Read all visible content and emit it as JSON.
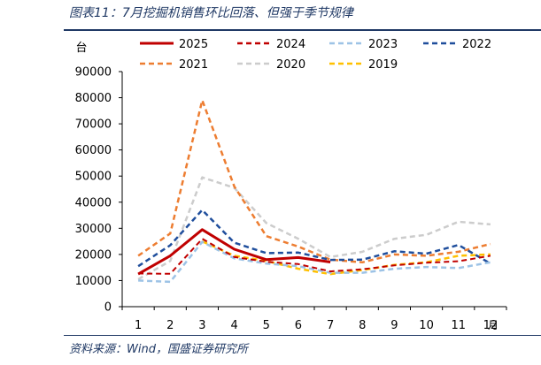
{
  "figure": {
    "title": "图表11：7月挖掘机销售环比回落、但强于季节规律",
    "source": "资料来源：Wind，国盛证券研究所"
  },
  "chart_data": {
    "type": "line",
    "ylabel": "台",
    "xlabel": "月",
    "x": [
      1,
      2,
      3,
      4,
      5,
      6,
      7,
      8,
      9,
      10,
      11,
      12
    ],
    "ylim": [
      0,
      90000
    ],
    "yticks": [
      0,
      10000,
      20000,
      30000,
      40000,
      50000,
      60000,
      70000,
      80000,
      90000
    ],
    "grid": false,
    "legend_position": "top",
    "series": [
      {
        "name": "2025",
        "color": "#c00000",
        "dash": "solid",
        "width": 3,
        "values": [
          12500,
          19500,
          29500,
          22000,
          18000,
          18800,
          17100,
          null,
          null,
          null,
          null,
          null
        ]
      },
      {
        "name": "2024",
        "color": "#c00000",
        "dash": "dashed",
        "width": 2,
        "values": [
          12700,
          12600,
          26000,
          19000,
          17200,
          16300,
          13500,
          14300,
          15800,
          16800,
          17400,
          19500
        ]
      },
      {
        "name": "2023",
        "color": "#9dc3e6",
        "dash": "dashed",
        "width": 2.5,
        "values": [
          10000,
          9500,
          24800,
          18500,
          16500,
          15500,
          13000,
          13000,
          14500,
          15200,
          14800,
          17000
        ]
      },
      {
        "name": "2022",
        "color": "#1f4e9c",
        "dash": "dashed",
        "width": 2.5,
        "values": [
          15500,
          23500,
          37000,
          24500,
          20500,
          20700,
          17900,
          18000,
          21200,
          20300,
          23600,
          16500
        ]
      },
      {
        "name": "2021",
        "color": "#ed7d31",
        "dash": "dashed",
        "width": 2.5,
        "values": [
          19500,
          28000,
          79000,
          46000,
          27000,
          23000,
          18000,
          17000,
          20000,
          19500,
          21000,
          24000
        ]
      },
      {
        "name": "2020",
        "color": "#cccccc",
        "dash": "dashed",
        "width": 2.5,
        "values": [
          10500,
          17500,
          49500,
          45500,
          32000,
          26000,
          19000,
          21000,
          26000,
          27500,
          32500,
          31500
        ]
      },
      {
        "name": "2019",
        "color": "#ffc000",
        "dash": "dashed",
        "width": 2.5,
        "values": [
          null,
          null,
          25000,
          19500,
          17500,
          14500,
          12500,
          14000,
          16000,
          17000,
          19500,
          20000
        ]
      }
    ]
  }
}
